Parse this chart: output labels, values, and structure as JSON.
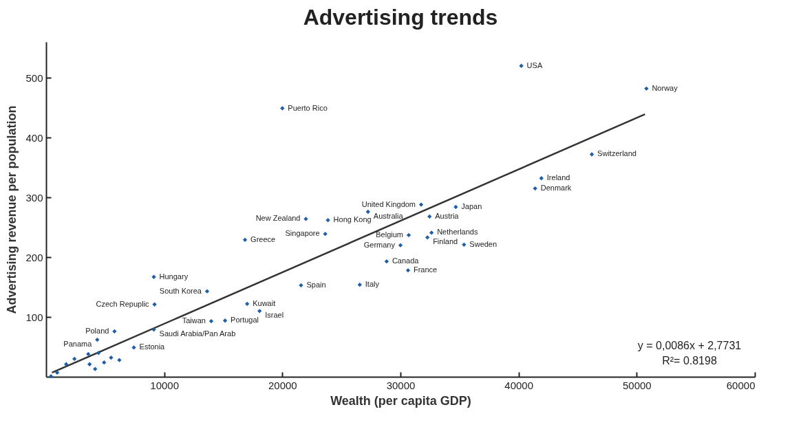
{
  "chart_data": {
    "title": "Advertising trends",
    "xlabel": "Wealth (per capita GDP)",
    "ylabel": "Advertising revenue per population",
    "xlim": [
      0,
      60000
    ],
    "ylim": [
      0,
      560
    ],
    "xticks": [
      10000,
      20000,
      30000,
      40000,
      50000,
      60000
    ],
    "yticks": [
      100,
      200,
      300,
      400,
      500
    ],
    "grid": false,
    "marker": "diamond",
    "type": "scatter",
    "series": [
      {
        "color": "#1f5fa8",
        "x": [
          40230,
          50820,
          20000,
          46200,
          41930,
          41400,
          31750,
          34680,
          27250,
          32460,
          21990,
          23860,
          23630,
          32630,
          32280,
          30700,
          16840,
          30000,
          35380,
          28830,
          30640,
          9120,
          21580,
          26550,
          13630,
          9180,
          17020,
          18070,
          15150,
          13980,
          9120,
          5790,
          4330,
          7430,
          410,
          940,
          1700,
          2400,
          3570,
          4440,
          3680,
          4150,
          5500,
          6200,
          4910
        ],
        "values": [
          520,
          482,
          449,
          372,
          332,
          315,
          288,
          284,
          276,
          268,
          264,
          262,
          239,
          241,
          233,
          237,
          229,
          220,
          221,
          193,
          178,
          167,
          153,
          154,
          143,
          121,
          122,
          110,
          94,
          93,
          79,
          76,
          62,
          49,
          1,
          7,
          21,
          30,
          38,
          40,
          21,
          13,
          32,
          28,
          24
        ]
      },
      {
        "type": "line",
        "marker": "none",
        "color": "#333333",
        "x": [
          500,
          50700
        ],
        "values": [
          7,
          439
        ]
      }
    ],
    "annotations": [
      {
        "text": "USA",
        "x": 40230,
        "y": 520
      },
      {
        "text": "Norway",
        "x": 50820,
        "y": 482
      },
      {
        "text": "Puerto Rico",
        "x": 20000,
        "y": 449
      },
      {
        "text": "Switzerland",
        "x": 46200,
        "y": 372
      },
      {
        "text": "Ireland",
        "x": 41930,
        "y": 332
      },
      {
        "text": "Denmark",
        "x": 41400,
        "y": 315
      },
      {
        "text": "United Kingdom",
        "x": 31750,
        "y": 288
      },
      {
        "text": "Japan",
        "x": 34680,
        "y": 284
      },
      {
        "text": "Australia",
        "x": 27250,
        "y": 276
      },
      {
        "text": "Austria",
        "x": 32460,
        "y": 268
      },
      {
        "text": "New Zealand",
        "x": 21990,
        "y": 264
      },
      {
        "text": "Hong Kong",
        "x": 23860,
        "y": 262
      },
      {
        "text": "Singapore",
        "x": 23630,
        "y": 239
      },
      {
        "text": "Netherlands",
        "x": 32630,
        "y": 241
      },
      {
        "text": "Finland",
        "x": 32280,
        "y": 233
      },
      {
        "text": "Belgium",
        "x": 30700,
        "y": 237
      },
      {
        "text": "Greece",
        "x": 16840,
        "y": 229
      },
      {
        "text": "Germany",
        "x": 30000,
        "y": 220
      },
      {
        "text": "Sweden",
        "x": 35380,
        "y": 221
      },
      {
        "text": "Canada",
        "x": 28830,
        "y": 193
      },
      {
        "text": "France",
        "x": 30640,
        "y": 178
      },
      {
        "text": "Hungary",
        "x": 9120,
        "y": 167
      },
      {
        "text": "Spain",
        "x": 21580,
        "y": 153
      },
      {
        "text": "Italy",
        "x": 26550,
        "y": 154
      },
      {
        "text": "South Korea",
        "x": 13630,
        "y": 143
      },
      {
        "text": "Czech Repuplic",
        "x": 9180,
        "y": 121
      },
      {
        "text": "Kuwait",
        "x": 17020,
        "y": 122
      },
      {
        "text": "Israel",
        "x": 18070,
        "y": 110
      },
      {
        "text": "Portugal",
        "x": 15150,
        "y": 94
      },
      {
        "text": "Taiwan",
        "x": 13980,
        "y": 93
      },
      {
        "text": "Saudi Arabia/Pan Arab",
        "x": 9120,
        "y": 79
      },
      {
        "text": "Poland",
        "x": 5790,
        "y": 76
      },
      {
        "text": "Panama",
        "x": 4330,
        "y": 62
      },
      {
        "text": "Estonia",
        "x": 7430,
        "y": 49
      },
      "y = 0,0086x + 2,7731",
      "R²= 0.8198"
    ]
  }
}
